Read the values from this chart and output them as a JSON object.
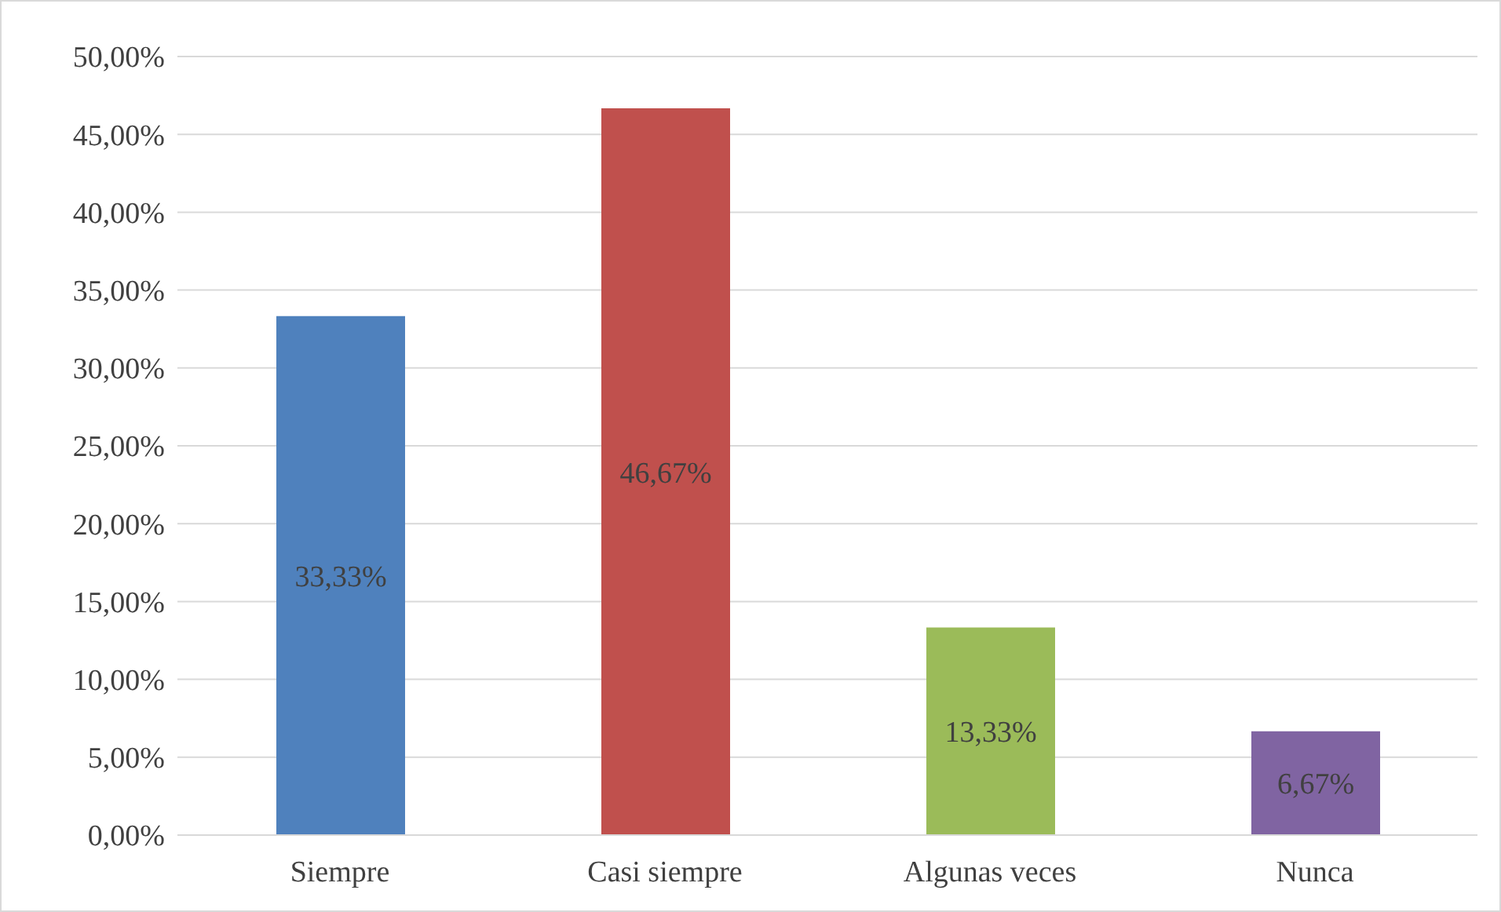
{
  "chart_data": {
    "type": "bar",
    "categories": [
      "Siempre",
      "Casi siempre",
      "Algunas veces",
      "Nunca"
    ],
    "values": [
      33.33,
      46.67,
      13.33,
      6.67
    ],
    "colors": [
      "#4f81bd",
      "#c0504d",
      "#9bbb59",
      "#8064a2"
    ],
    "value_labels": [
      "33,33%",
      "46,67%",
      "13,33%",
      "6,67%"
    ],
    "ylim": [
      0,
      50
    ],
    "yticks": [
      {
        "value": 0,
        "label": "0,00%"
      },
      {
        "value": 5,
        "label": "5,00%"
      },
      {
        "value": 10,
        "label": "10,00%"
      },
      {
        "value": 15,
        "label": "15,00%"
      },
      {
        "value": 20,
        "label": "20,00%"
      },
      {
        "value": 25,
        "label": "25,00%"
      },
      {
        "value": 30,
        "label": "30,00%"
      },
      {
        "value": 35,
        "label": "35,00%"
      },
      {
        "value": 40,
        "label": "40,00%"
      },
      {
        "value": 45,
        "label": "45,00%"
      },
      {
        "value": 50,
        "label": "50,00%"
      }
    ],
    "grid": "y"
  }
}
